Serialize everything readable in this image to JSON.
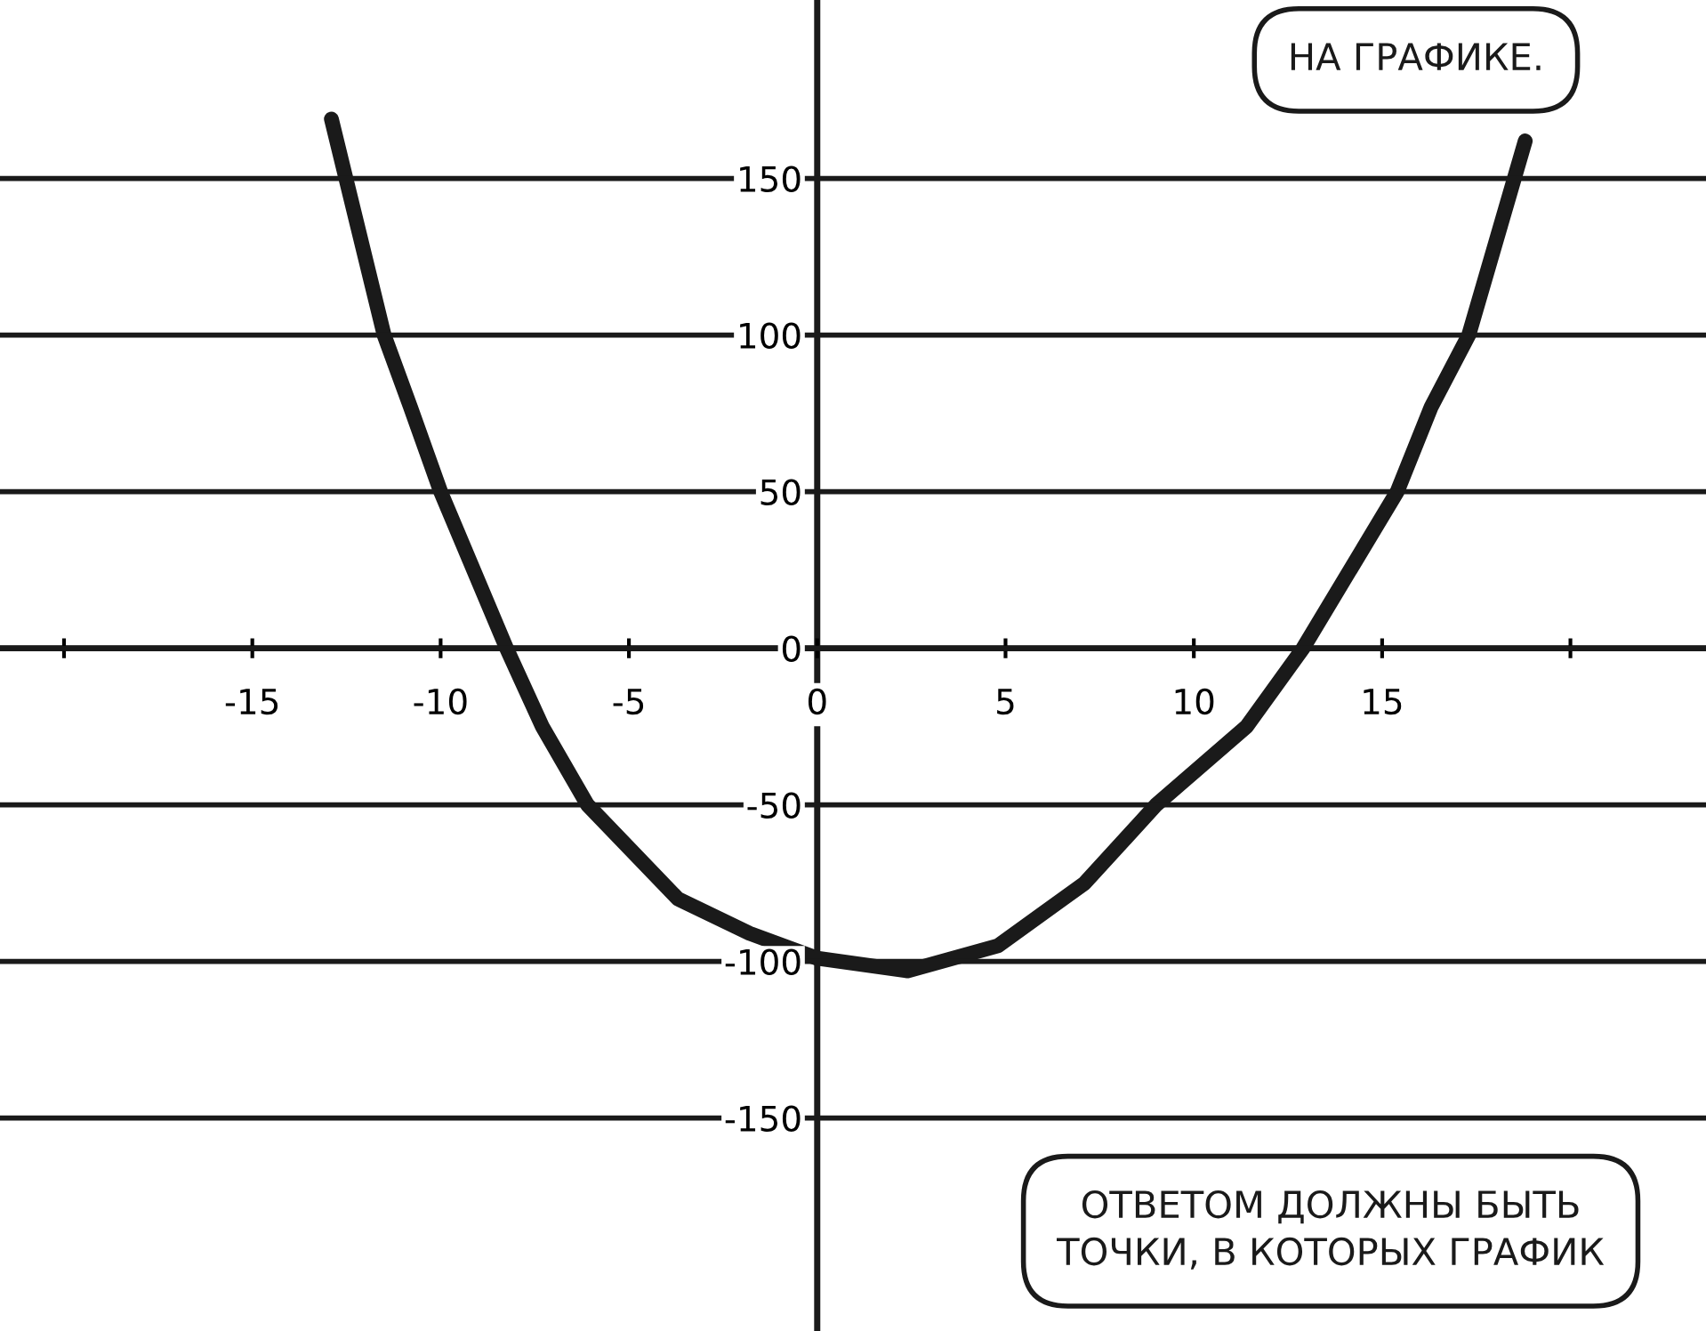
{
  "chart_data": {
    "type": "line",
    "x": [
      -12.9,
      -11.5,
      -10.8,
      -10,
      -8.25,
      -7.3,
      -6.1,
      -3.7,
      -1.8,
      0,
      2.4,
      4.8,
      7.1,
      9,
      11.4,
      12.9,
      15.4,
      16.3,
      17.3,
      18.8
    ],
    "values": [
      169,
      100,
      77,
      50,
      0,
      -25,
      -50,
      -80,
      -91,
      -99,
      -103,
      -95,
      -75,
      -50,
      -25,
      0,
      50,
      77,
      100,
      162
    ],
    "color": "#1a1a1a",
    "xlim": [
      -21.7,
      23.6
    ],
    "ylim": [
      -218,
      207
    ],
    "xticks": [
      {
        "value": -20,
        "label": null
      },
      -15,
      -10,
      -5,
      0,
      5,
      10,
      15,
      {
        "value": 20,
        "label": null
      }
    ],
    "yticks": [
      -150,
      -100,
      -50,
      0,
      50,
      100,
      150
    ],
    "grid": "y",
    "marker": "none",
    "line_style": "solid",
    "annotations": [
      "НА ГРАФИКЕ.",
      "ОТВЕТОМ ДОЛЖНЫ БЫТЬ\nТОЧКИ, В КОТОРЫХ ГРАФИК"
    ]
  }
}
